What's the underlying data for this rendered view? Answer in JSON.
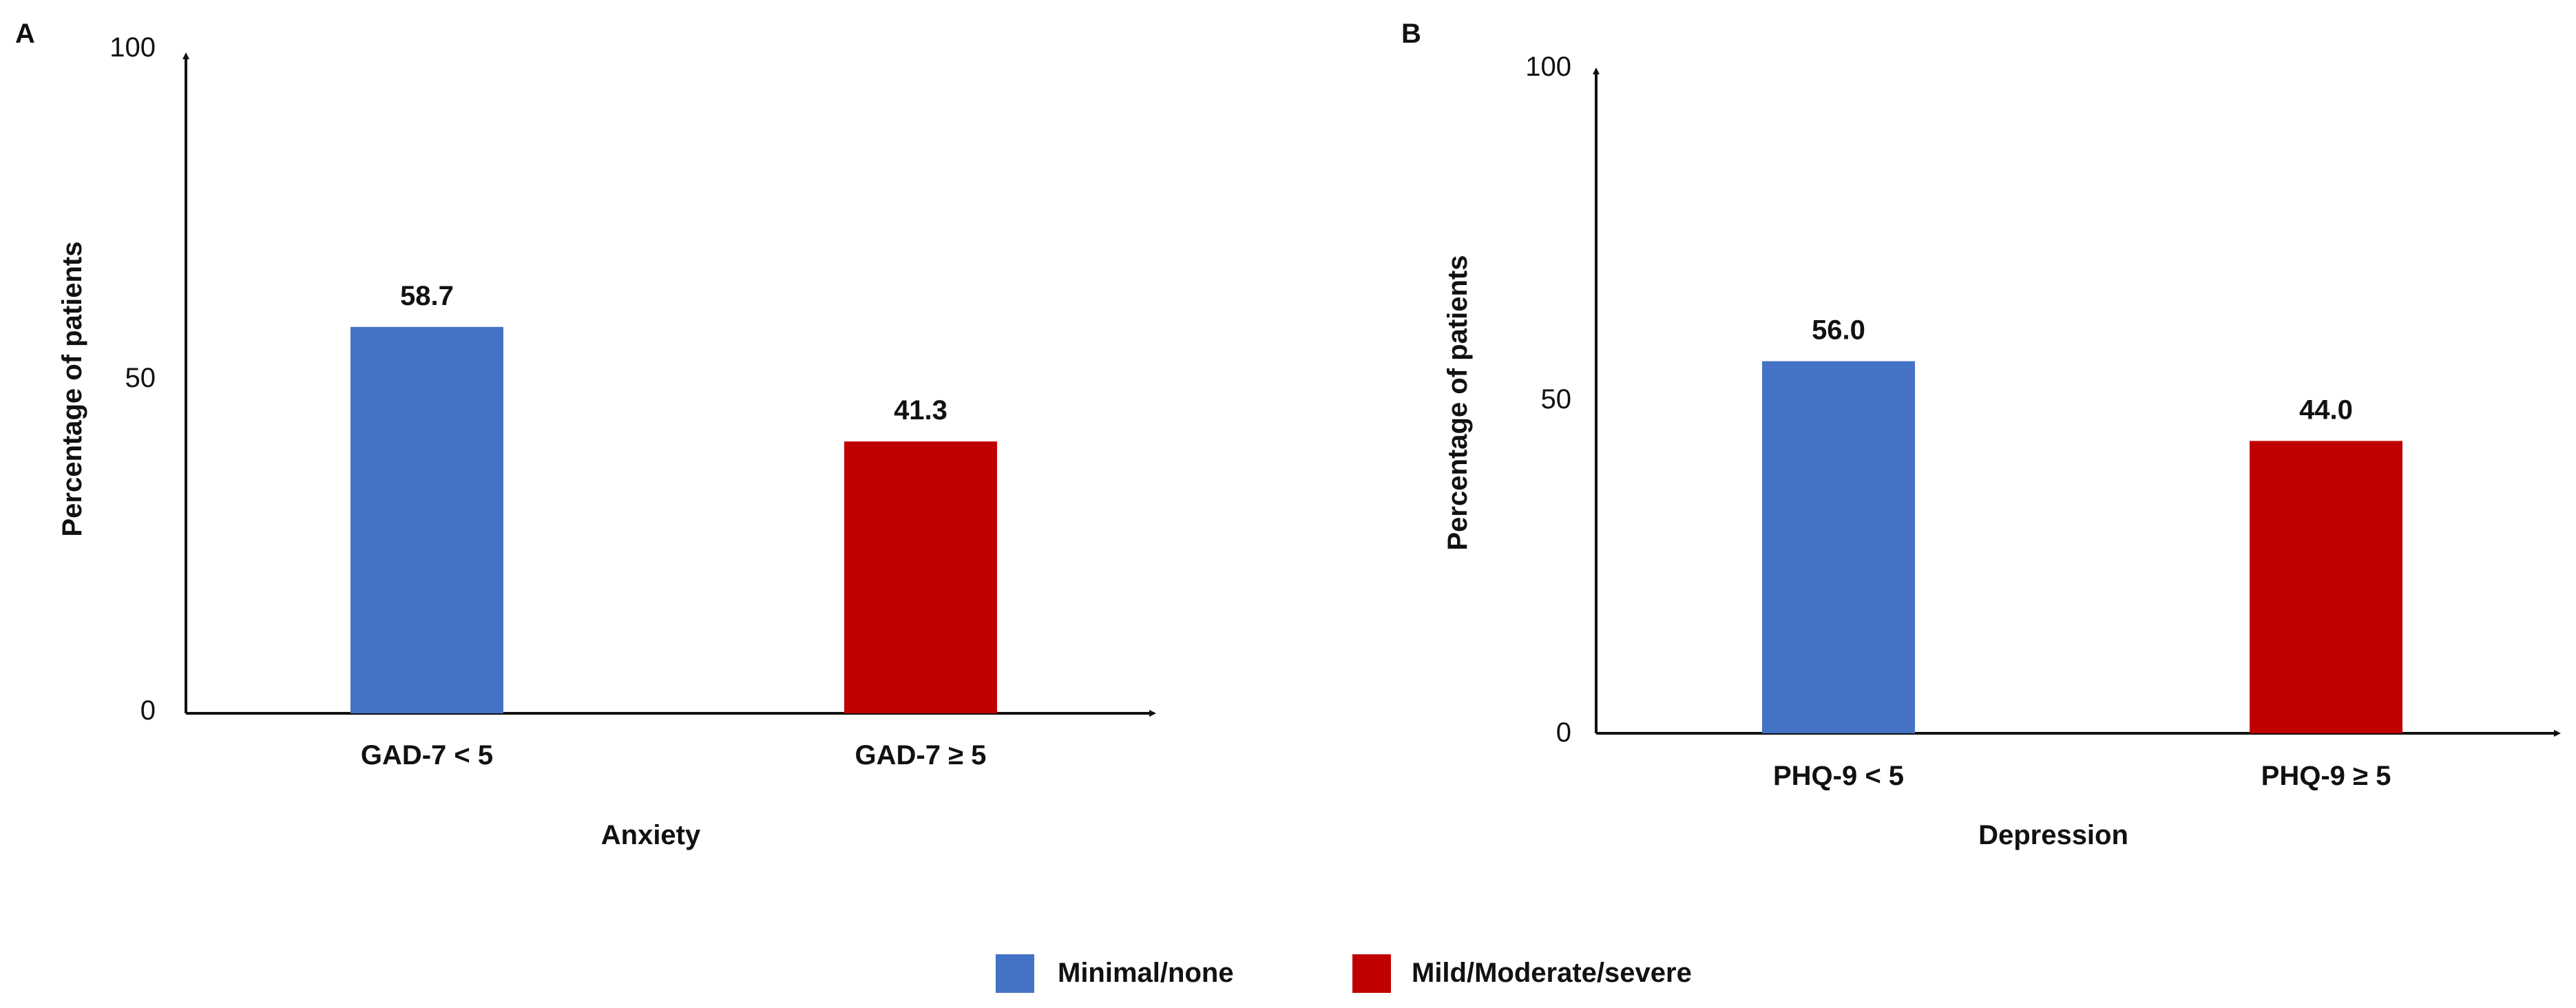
{
  "colors": {
    "minimal": "#4472c4",
    "mild": "#c00000",
    "axis": "#111111"
  },
  "legend": {
    "items": [
      {
        "label": "Minimal/none",
        "color": "#4472c4"
      },
      {
        "label": "Mild/Moderate/severe",
        "color": "#c00000"
      }
    ]
  },
  "chart_data": [
    {
      "type": "bar",
      "panel": "A",
      "categories": [
        "GAD-7 < 5",
        "GAD-7 ≥ 5"
      ],
      "values": [
        58.7,
        41.3
      ],
      "value_labels": [
        "58.7",
        "41.3"
      ],
      "bar_colors": [
        "#4472c4",
        "#c00000"
      ],
      "ylabel": "Percentage of patients",
      "xlabel": "Anxiety",
      "ylim": [
        0,
        100
      ],
      "yticks": [
        "0",
        "50",
        "100"
      ],
      "grid": false
    },
    {
      "type": "bar",
      "panel": "B",
      "categories": [
        "PHQ-9 < 5",
        "PHQ-9 ≥ 5"
      ],
      "values": [
        56.0,
        44.0
      ],
      "value_labels": [
        "56.0",
        "44.0"
      ],
      "bar_colors": [
        "#4472c4",
        "#c00000"
      ],
      "ylabel": "Percentage of patients",
      "xlabel": "Depression",
      "ylim": [
        0,
        100
      ],
      "yticks": [
        "0",
        "50",
        "100"
      ],
      "grid": false
    }
  ]
}
